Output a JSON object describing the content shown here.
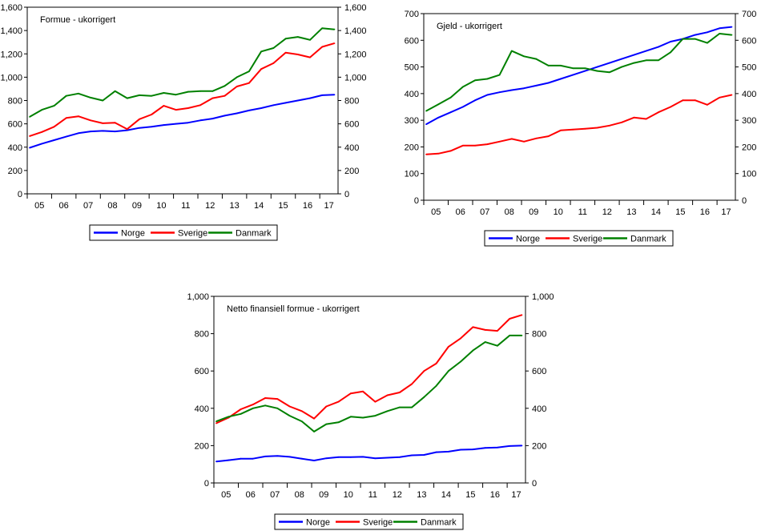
{
  "chart_data": [
    {
      "type": "line",
      "title": "Formue - ukorrigert",
      "ylim": [
        0,
        1600
      ],
      "yticks": [
        0,
        200,
        400,
        600,
        800,
        1000,
        1200,
        1400,
        1600
      ],
      "ytick_labels": [
        "0",
        "200",
        "400",
        "600",
        "800",
        "1,000",
        "1,200",
        "1,400",
        "1,600"
      ],
      "xlim": [
        2005,
        2017.75
      ],
      "xtick_labels": [
        "05",
        "06",
        "07",
        "08",
        "09",
        "10",
        "11",
        "12",
        "13",
        "14",
        "15",
        "16",
        "17"
      ],
      "legend_placement": "bottom",
      "x": [
        2005.1,
        2005.6,
        2006.1,
        2006.6,
        2007.1,
        2007.6,
        2008.1,
        2008.6,
        2009.1,
        2009.6,
        2010.1,
        2010.6,
        2011.1,
        2011.6,
        2012.1,
        2012.6,
        2013.1,
        2013.6,
        2014.1,
        2014.6,
        2015.1,
        2015.6,
        2016.1,
        2016.6,
        2017.1,
        2017.6
      ],
      "series": [
        {
          "name": "Norge",
          "color": "#0000ff",
          "values": [
            395,
            430,
            460,
            490,
            520,
            535,
            540,
            535,
            545,
            565,
            575,
            590,
            600,
            610,
            630,
            645,
            670,
            690,
            715,
            735,
            760,
            780,
            800,
            820,
            845,
            850
          ]
        },
        {
          "name": "Sverige",
          "color": "#ff0000",
          "values": [
            495,
            530,
            575,
            650,
            665,
            630,
            605,
            610,
            555,
            640,
            680,
            755,
            720,
            735,
            760,
            820,
            840,
            920,
            950,
            1070,
            1120,
            1210,
            1195,
            1170,
            1260,
            1290
          ]
        },
        {
          "name": "Danmark",
          "color": "#008000",
          "values": [
            660,
            720,
            755,
            840,
            860,
            825,
            800,
            880,
            820,
            845,
            840,
            865,
            850,
            875,
            880,
            880,
            925,
            1000,
            1050,
            1220,
            1250,
            1330,
            1345,
            1320,
            1420,
            1410
          ]
        }
      ]
    },
    {
      "type": "line",
      "title": "Gjeld - ukorrigert",
      "ylim": [
        0,
        700
      ],
      "yticks": [
        0,
        100,
        200,
        300,
        400,
        500,
        600,
        700
      ],
      "ytick_labels": [
        "0",
        "100",
        "200",
        "300",
        "400",
        "500",
        "600",
        "700"
      ],
      "xlim": [
        2005,
        2017.75
      ],
      "xtick_labels": [
        "05",
        "06",
        "07",
        "08",
        "09",
        "10",
        "11",
        "12",
        "13",
        "14",
        "15",
        "16",
        "17"
      ],
      "legend_placement": "bottom",
      "x": [
        2005.1,
        2005.6,
        2006.1,
        2006.6,
        2007.1,
        2007.6,
        2008.1,
        2008.6,
        2009.1,
        2009.6,
        2010.1,
        2010.6,
        2011.1,
        2011.6,
        2012.1,
        2012.6,
        2013.1,
        2013.6,
        2014.1,
        2014.6,
        2015.1,
        2015.6,
        2016.1,
        2016.6,
        2017.1,
        2017.6
      ],
      "series": [
        {
          "name": "Norge",
          "color": "#0000ff",
          "values": [
            285,
            310,
            330,
            350,
            375,
            395,
            405,
            413,
            420,
            430,
            440,
            455,
            470,
            485,
            500,
            515,
            530,
            545,
            560,
            575,
            595,
            605,
            620,
            630,
            645,
            650
          ]
        },
        {
          "name": "Sverige",
          "color": "#ff0000",
          "values": [
            172,
            175,
            185,
            205,
            205,
            210,
            220,
            230,
            220,
            232,
            240,
            262,
            265,
            268,
            272,
            280,
            292,
            310,
            305,
            330,
            350,
            375,
            375,
            358,
            385,
            395
          ]
        },
        {
          "name": "Danmark",
          "color": "#008000",
          "values": [
            335,
            360,
            385,
            425,
            450,
            455,
            470,
            560,
            540,
            530,
            505,
            505,
            495,
            495,
            485,
            480,
            500,
            515,
            525,
            525,
            555,
            605,
            605,
            590,
            625,
            620
          ]
        }
      ]
    },
    {
      "type": "line",
      "title": "Netto finansiell formue - ukorrigert",
      "ylim": [
        0,
        1000
      ],
      "yticks": [
        0,
        200,
        400,
        600,
        800,
        1000
      ],
      "ytick_labels": [
        "0",
        "200",
        "400",
        "600",
        "800",
        "1,000"
      ],
      "xlim": [
        2005,
        2017.75
      ],
      "xtick_labels": [
        "05",
        "06",
        "07",
        "08",
        "09",
        "10",
        "11",
        "12",
        "13",
        "14",
        "15",
        "16",
        "17"
      ],
      "legend_placement": "bottom",
      "x": [
        2005.1,
        2005.6,
        2006.1,
        2006.6,
        2007.1,
        2007.6,
        2008.1,
        2008.6,
        2009.1,
        2009.6,
        2010.1,
        2010.6,
        2011.1,
        2011.6,
        2012.1,
        2012.6,
        2013.1,
        2013.6,
        2014.1,
        2014.6,
        2015.1,
        2015.6,
        2016.1,
        2016.6,
        2017.1,
        2017.6
      ],
      "series": [
        {
          "name": "Norge",
          "color": "#0000ff",
          "values": [
            115,
            122,
            130,
            130,
            142,
            145,
            140,
            130,
            120,
            132,
            138,
            138,
            140,
            132,
            135,
            138,
            148,
            150,
            165,
            168,
            178,
            180,
            188,
            190,
            198,
            200
          ]
        },
        {
          "name": "Sverige",
          "color": "#ff0000",
          "values": [
            320,
            350,
            395,
            420,
            455,
            450,
            410,
            385,
            345,
            410,
            435,
            480,
            490,
            435,
            470,
            485,
            530,
            600,
            640,
            730,
            775,
            835,
            820,
            815,
            880,
            900
          ]
        },
        {
          "name": "Danmark",
          "color": "#008000",
          "values": [
            330,
            355,
            370,
            400,
            415,
            400,
            360,
            330,
            275,
            315,
            325,
            355,
            350,
            360,
            385,
            405,
            405,
            460,
            520,
            600,
            650,
            710,
            755,
            735,
            790,
            790
          ]
        }
      ]
    }
  ]
}
